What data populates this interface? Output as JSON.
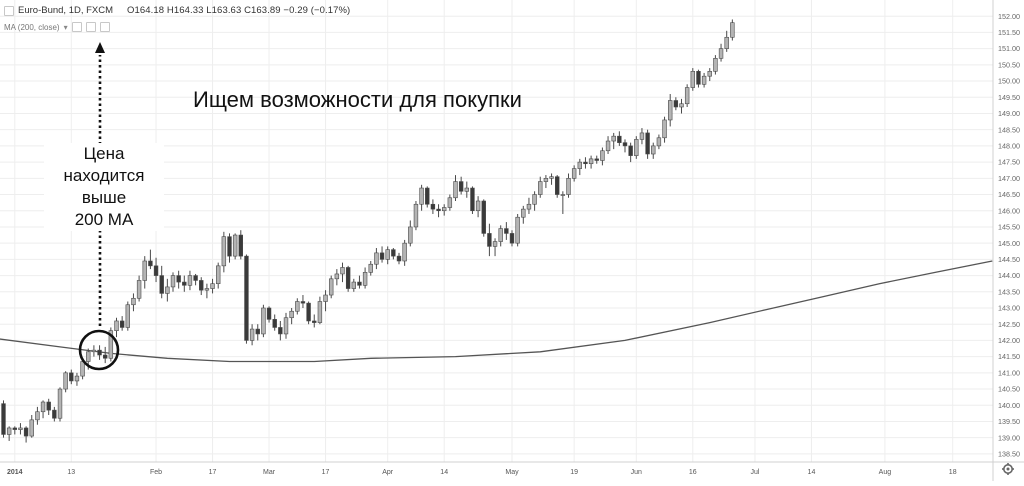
{
  "header": {
    "symbol": "Euro-Bund, 1D, FXCM",
    "ohlc": "O164.18  H164.33  L163.63  C163.89  −0.29 (−0.17%)",
    "indicator": "MA (200, close)"
  },
  "annotations": {
    "main": "Ищем возможности для покупки",
    "side_lines": [
      "Цена",
      "находится",
      "выше",
      "200 MA"
    ]
  },
  "colors": {
    "up": "#b4b4b4",
    "down": "#3a3a3a",
    "ma": "#555555",
    "grid": "#eeeeee",
    "circle": "#111111"
  },
  "chart_data": {
    "type": "candlestick",
    "title": "Euro-Bund, 1D, FXCM",
    "ylim": [
      138.25,
      152.5
    ],
    "y_ticks": [
      "138.50",
      "139.00",
      "139.50",
      "140.00",
      "140.50",
      "141.00",
      "141.50",
      "142.00",
      "142.50",
      "143.00",
      "143.50",
      "144.00",
      "144.50",
      "145.00",
      "145.50",
      "146.00",
      "146.50",
      "147.00",
      "147.50",
      "148.00",
      "148.50",
      "149.00",
      "149.50",
      "150.00",
      "150.50",
      "151.00",
      "151.50",
      "152.00"
    ],
    "x_ticks": [
      "2014",
      "13",
      "Feb",
      "17",
      "Mar",
      "17",
      "Apr",
      "14",
      "May",
      "19",
      "Jun",
      "16",
      "Jul",
      "14",
      "Aug",
      "18"
    ],
    "x_tick_index": [
      2,
      12,
      27,
      37,
      47,
      57,
      68,
      78,
      90,
      101,
      112,
      122,
      133,
      143,
      156,
      168
    ],
    "candles": [
      {
        "o": 140.05,
        "h": 140.15,
        "l": 139.0,
        "c": 139.1
      },
      {
        "o": 139.1,
        "h": 139.35,
        "l": 138.9,
        "c": 139.3
      },
      {
        "o": 139.3,
        "h": 139.35,
        "l": 139.1,
        "c": 139.25
      },
      {
        "o": 139.25,
        "h": 139.45,
        "l": 139.1,
        "c": 139.3
      },
      {
        "o": 139.3,
        "h": 139.35,
        "l": 138.85,
        "c": 139.05
      },
      {
        "o": 139.05,
        "h": 139.7,
        "l": 139.0,
        "c": 139.55
      },
      {
        "o": 139.55,
        "h": 139.95,
        "l": 139.4,
        "c": 139.8
      },
      {
        "o": 139.8,
        "h": 140.15,
        "l": 139.6,
        "c": 140.1
      },
      {
        "o": 140.1,
        "h": 140.2,
        "l": 139.7,
        "c": 139.85
      },
      {
        "o": 139.85,
        "h": 139.95,
        "l": 139.5,
        "c": 139.6
      },
      {
        "o": 139.6,
        "h": 140.55,
        "l": 139.5,
        "c": 140.5
      },
      {
        "o": 140.5,
        "h": 141.05,
        "l": 140.4,
        "c": 141.0
      },
      {
        "o": 141.0,
        "h": 141.1,
        "l": 140.65,
        "c": 140.75
      },
      {
        "o": 140.75,
        "h": 141.0,
        "l": 140.6,
        "c": 140.9
      },
      {
        "o": 140.9,
        "h": 141.45,
        "l": 140.8,
        "c": 141.35
      },
      {
        "o": 141.35,
        "h": 141.75,
        "l": 141.1,
        "c": 141.65
      },
      {
        "o": 141.65,
        "h": 141.85,
        "l": 141.5,
        "c": 141.7
      },
      {
        "o": 141.7,
        "h": 141.85,
        "l": 141.4,
        "c": 141.55
      },
      {
        "o": 141.55,
        "h": 141.8,
        "l": 141.3,
        "c": 141.45
      },
      {
        "o": 141.45,
        "h": 142.4,
        "l": 141.35,
        "c": 142.3
      },
      {
        "o": 142.3,
        "h": 142.7,
        "l": 142.1,
        "c": 142.6
      },
      {
        "o": 142.6,
        "h": 142.75,
        "l": 142.3,
        "c": 142.4
      },
      {
        "o": 142.4,
        "h": 143.2,
        "l": 142.3,
        "c": 143.1
      },
      {
        "o": 143.1,
        "h": 143.45,
        "l": 142.9,
        "c": 143.3
      },
      {
        "o": 143.3,
        "h": 144.0,
        "l": 143.2,
        "c": 143.85
      },
      {
        "o": 143.85,
        "h": 144.6,
        "l": 143.6,
        "c": 144.45
      },
      {
        "o": 144.45,
        "h": 144.8,
        "l": 144.2,
        "c": 144.3
      },
      {
        "o": 144.3,
        "h": 144.55,
        "l": 143.8,
        "c": 144.0
      },
      {
        "o": 144.0,
        "h": 144.3,
        "l": 143.3,
        "c": 143.45
      },
      {
        "o": 143.45,
        "h": 143.9,
        "l": 143.2,
        "c": 143.65
      },
      {
        "o": 143.65,
        "h": 144.1,
        "l": 143.5,
        "c": 144.0
      },
      {
        "o": 144.0,
        "h": 144.15,
        "l": 143.6,
        "c": 143.8
      },
      {
        "o": 143.8,
        "h": 144.0,
        "l": 143.5,
        "c": 143.7
      },
      {
        "o": 143.7,
        "h": 144.15,
        "l": 143.55,
        "c": 144.0
      },
      {
        "o": 144.0,
        "h": 144.05,
        "l": 143.7,
        "c": 143.85
      },
      {
        "o": 143.85,
        "h": 143.95,
        "l": 143.4,
        "c": 143.55
      },
      {
        "o": 143.55,
        "h": 143.75,
        "l": 143.3,
        "c": 143.6
      },
      {
        "o": 143.6,
        "h": 143.9,
        "l": 143.45,
        "c": 143.75
      },
      {
        "o": 143.75,
        "h": 144.4,
        "l": 143.6,
        "c": 144.3
      },
      {
        "o": 144.3,
        "h": 145.35,
        "l": 144.1,
        "c": 145.2
      },
      {
        "o": 145.2,
        "h": 145.3,
        "l": 144.4,
        "c": 144.6
      },
      {
        "o": 144.6,
        "h": 145.3,
        "l": 144.5,
        "c": 145.25
      },
      {
        "o": 145.25,
        "h": 145.4,
        "l": 144.5,
        "c": 144.6
      },
      {
        "o": 144.6,
        "h": 144.65,
        "l": 141.9,
        "c": 142.0
      },
      {
        "o": 142.0,
        "h": 142.5,
        "l": 141.85,
        "c": 142.35
      },
      {
        "o": 142.35,
        "h": 142.5,
        "l": 142.0,
        "c": 142.2
      },
      {
        "o": 142.2,
        "h": 143.1,
        "l": 142.1,
        "c": 143.0
      },
      {
        "o": 143.0,
        "h": 143.05,
        "l": 142.55,
        "c": 142.65
      },
      {
        "o": 142.65,
        "h": 142.8,
        "l": 142.3,
        "c": 142.4
      },
      {
        "o": 142.4,
        "h": 142.6,
        "l": 142.0,
        "c": 142.2
      },
      {
        "o": 142.2,
        "h": 142.85,
        "l": 142.05,
        "c": 142.7
      },
      {
        "o": 142.7,
        "h": 143.0,
        "l": 142.5,
        "c": 142.9
      },
      {
        "o": 142.9,
        "h": 143.3,
        "l": 142.8,
        "c": 143.2
      },
      {
        "o": 143.2,
        "h": 143.4,
        "l": 143.0,
        "c": 143.15
      },
      {
        "o": 143.15,
        "h": 143.2,
        "l": 142.5,
        "c": 142.6
      },
      {
        "o": 142.6,
        "h": 142.8,
        "l": 142.4,
        "c": 142.55
      },
      {
        "o": 142.55,
        "h": 143.35,
        "l": 142.5,
        "c": 143.2
      },
      {
        "o": 143.2,
        "h": 143.55,
        "l": 142.9,
        "c": 143.4
      },
      {
        "o": 143.4,
        "h": 144.0,
        "l": 143.3,
        "c": 143.9
      },
      {
        "o": 143.9,
        "h": 144.2,
        "l": 143.7,
        "c": 144.05
      },
      {
        "o": 144.05,
        "h": 144.4,
        "l": 143.8,
        "c": 144.25
      },
      {
        "o": 144.25,
        "h": 144.3,
        "l": 143.5,
        "c": 143.6
      },
      {
        "o": 143.6,
        "h": 143.9,
        "l": 143.5,
        "c": 143.8
      },
      {
        "o": 143.8,
        "h": 144.0,
        "l": 143.6,
        "c": 143.7
      },
      {
        "o": 143.7,
        "h": 144.25,
        "l": 143.6,
        "c": 144.1
      },
      {
        "o": 144.1,
        "h": 144.45,
        "l": 144.0,
        "c": 144.35
      },
      {
        "o": 144.35,
        "h": 144.85,
        "l": 144.2,
        "c": 144.7
      },
      {
        "o": 144.7,
        "h": 144.9,
        "l": 144.4,
        "c": 144.5
      },
      {
        "o": 144.5,
        "h": 144.9,
        "l": 144.35,
        "c": 144.8
      },
      {
        "o": 144.8,
        "h": 144.85,
        "l": 144.5,
        "c": 144.6
      },
      {
        "o": 144.6,
        "h": 144.7,
        "l": 144.35,
        "c": 144.45
      },
      {
        "o": 144.45,
        "h": 145.1,
        "l": 144.3,
        "c": 145.0
      },
      {
        "o": 145.0,
        "h": 145.7,
        "l": 144.9,
        "c": 145.5
      },
      {
        "o": 145.5,
        "h": 146.3,
        "l": 145.4,
        "c": 146.2
      },
      {
        "o": 146.2,
        "h": 146.8,
        "l": 146.0,
        "c": 146.7
      },
      {
        "o": 146.7,
        "h": 146.75,
        "l": 146.1,
        "c": 146.2
      },
      {
        "o": 146.2,
        "h": 146.35,
        "l": 145.9,
        "c": 146.05
      },
      {
        "o": 146.05,
        "h": 146.2,
        "l": 145.8,
        "c": 146.0
      },
      {
        "o": 146.0,
        "h": 146.2,
        "l": 145.85,
        "c": 146.1
      },
      {
        "o": 146.1,
        "h": 146.5,
        "l": 146.0,
        "c": 146.4
      },
      {
        "o": 146.4,
        "h": 147.1,
        "l": 146.3,
        "c": 146.9
      },
      {
        "o": 146.9,
        "h": 147.05,
        "l": 146.5,
        "c": 146.6
      },
      {
        "o": 146.6,
        "h": 146.9,
        "l": 146.4,
        "c": 146.7
      },
      {
        "o": 146.7,
        "h": 146.75,
        "l": 145.9,
        "c": 146.0
      },
      {
        "o": 146.0,
        "h": 146.45,
        "l": 145.8,
        "c": 146.3
      },
      {
        "o": 146.3,
        "h": 146.35,
        "l": 145.2,
        "c": 145.3
      },
      {
        "o": 145.3,
        "h": 145.6,
        "l": 144.6,
        "c": 144.9
      },
      {
        "o": 144.9,
        "h": 145.15,
        "l": 144.6,
        "c": 145.05
      },
      {
        "o": 145.05,
        "h": 145.55,
        "l": 144.9,
        "c": 145.45
      },
      {
        "o": 145.45,
        "h": 145.65,
        "l": 145.1,
        "c": 145.3
      },
      {
        "o": 145.3,
        "h": 145.4,
        "l": 144.9,
        "c": 145.0
      },
      {
        "o": 145.0,
        "h": 145.9,
        "l": 144.9,
        "c": 145.8
      },
      {
        "o": 145.8,
        "h": 146.15,
        "l": 145.6,
        "c": 146.05
      },
      {
        "o": 146.05,
        "h": 146.4,
        "l": 145.9,
        "c": 146.2
      },
      {
        "o": 146.2,
        "h": 146.6,
        "l": 146.0,
        "c": 146.5
      },
      {
        "o": 146.5,
        "h": 147.05,
        "l": 146.4,
        "c": 146.9
      },
      {
        "o": 146.9,
        "h": 147.1,
        "l": 146.7,
        "c": 147.0
      },
      {
        "o": 147.0,
        "h": 147.15,
        "l": 146.8,
        "c": 147.05
      },
      {
        "o": 147.05,
        "h": 147.1,
        "l": 146.4,
        "c": 146.5
      },
      {
        "o": 146.5,
        "h": 146.6,
        "l": 145.9,
        "c": 146.5
      },
      {
        "o": 146.5,
        "h": 147.15,
        "l": 146.4,
        "c": 147.0
      },
      {
        "o": 147.0,
        "h": 147.4,
        "l": 146.9,
        "c": 147.3
      },
      {
        "o": 147.3,
        "h": 147.6,
        "l": 147.1,
        "c": 147.5
      },
      {
        "o": 147.5,
        "h": 147.65,
        "l": 147.3,
        "c": 147.45
      },
      {
        "o": 147.45,
        "h": 147.7,
        "l": 147.3,
        "c": 147.6
      },
      {
        "o": 147.6,
        "h": 147.7,
        "l": 147.45,
        "c": 147.55
      },
      {
        "o": 147.55,
        "h": 147.95,
        "l": 147.4,
        "c": 147.85
      },
      {
        "o": 147.85,
        "h": 148.3,
        "l": 147.75,
        "c": 148.15
      },
      {
        "o": 148.15,
        "h": 148.4,
        "l": 147.9,
        "c": 148.3
      },
      {
        "o": 148.3,
        "h": 148.45,
        "l": 148.0,
        "c": 148.1
      },
      {
        "o": 148.1,
        "h": 148.2,
        "l": 147.8,
        "c": 148.0
      },
      {
        "o": 148.0,
        "h": 148.1,
        "l": 147.5,
        "c": 147.7
      },
      {
        "o": 147.7,
        "h": 148.3,
        "l": 147.6,
        "c": 148.2
      },
      {
        "o": 148.2,
        "h": 148.55,
        "l": 148.05,
        "c": 148.4
      },
      {
        "o": 148.4,
        "h": 148.5,
        "l": 147.6,
        "c": 147.75
      },
      {
        "o": 147.75,
        "h": 148.1,
        "l": 147.6,
        "c": 148.0
      },
      {
        "o": 148.0,
        "h": 148.35,
        "l": 147.9,
        "c": 148.25
      },
      {
        "o": 148.25,
        "h": 148.9,
        "l": 148.1,
        "c": 148.8
      },
      {
        "o": 148.8,
        "h": 149.6,
        "l": 148.6,
        "c": 149.4
      },
      {
        "o": 149.4,
        "h": 149.5,
        "l": 149.1,
        "c": 149.2
      },
      {
        "o": 149.2,
        "h": 149.45,
        "l": 149.0,
        "c": 149.3
      },
      {
        "o": 149.3,
        "h": 149.9,
        "l": 149.2,
        "c": 149.8
      },
      {
        "o": 149.8,
        "h": 150.4,
        "l": 149.7,
        "c": 150.3
      },
      {
        "o": 150.3,
        "h": 150.35,
        "l": 149.8,
        "c": 149.9
      },
      {
        "o": 149.9,
        "h": 150.25,
        "l": 149.8,
        "c": 150.15
      },
      {
        "o": 150.15,
        "h": 150.4,
        "l": 150.0,
        "c": 150.3
      },
      {
        "o": 150.3,
        "h": 150.8,
        "l": 150.2,
        "c": 150.7
      },
      {
        "o": 150.7,
        "h": 151.15,
        "l": 150.6,
        "c": 151.0
      },
      {
        "o": 151.0,
        "h": 151.55,
        "l": 150.9,
        "c": 151.35
      },
      {
        "o": 151.35,
        "h": 151.9,
        "l": 151.25,
        "c": 151.8
      }
    ],
    "ma_points": [
      {
        "i": -1,
        "v": 142.05
      },
      {
        "i": 10,
        "v": 141.8
      },
      {
        "i": 19,
        "v": 141.6
      },
      {
        "i": 29,
        "v": 141.45
      },
      {
        "i": 40,
        "v": 141.35
      },
      {
        "i": 55,
        "v": 141.35
      },
      {
        "i": 65,
        "v": 141.45
      },
      {
        "i": 80,
        "v": 141.5
      },
      {
        "i": 95,
        "v": 141.65
      },
      {
        "i": 110,
        "v": 142.0
      },
      {
        "i": 125,
        "v": 142.55
      },
      {
        "i": 135,
        "v": 142.95
      },
      {
        "i": 145,
        "v": 143.35
      },
      {
        "i": 155,
        "v": 143.75
      },
      {
        "i": 165,
        "v": 144.1
      },
      {
        "i": 175,
        "v": 144.45
      }
    ]
  }
}
